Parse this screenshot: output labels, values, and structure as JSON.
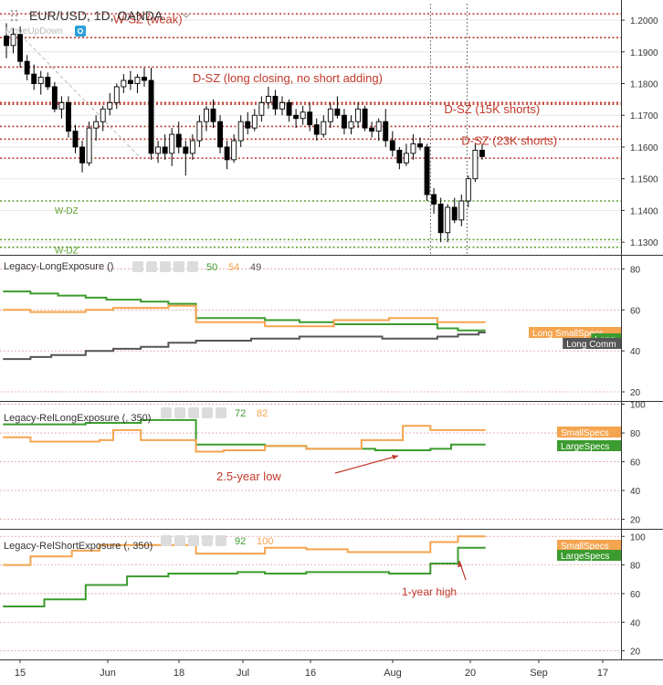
{
  "colors": {
    "candle_up": "#ffffff",
    "candle_down": "#000000",
    "supply_zone": "#c0392b",
    "demand_zone": "#5aa02c",
    "large_specs": "#3c9b2f",
    "small_specs": "#f5a44f",
    "commercials": "#555555",
    "annotation": "#c0392b",
    "axis_text": "#333333",
    "grid": "#e6e6e6"
  },
  "chart_data": [
    {
      "type": "candlestick",
      "title": "EUR/USD, 1D, OANDA",
      "sub_label": "MoveUpDown",
      "x_ticks": [
        "15",
        "Jun",
        "18",
        "Jul",
        "16",
        "Aug",
        "20",
        "Sep",
        "17"
      ],
      "y_ticks": [
        "1.2000",
        "1.1900",
        "1.1800",
        "1.1700",
        "1.1600",
        "1.1500",
        "1.1400",
        "1.1300"
      ],
      "ylim": [
        1.1263,
        1.2052
      ],
      "candles": [
        [
          1.195,
          1.199,
          1.188,
          1.192
        ],
        [
          1.192,
          1.1975,
          1.1895,
          1.1955
        ],
        [
          1.1955,
          1.198,
          1.185,
          1.187
        ],
        [
          1.187,
          1.189,
          1.181,
          1.183
        ],
        [
          1.183,
          1.186,
          1.178,
          1.18
        ],
        [
          1.18,
          1.184,
          1.1765,
          1.182
        ],
        [
          1.182,
          1.1835,
          1.178,
          1.179
        ],
        [
          1.179,
          1.1805,
          1.171,
          1.172
        ],
        [
          1.172,
          1.176,
          1.169,
          1.174
        ],
        [
          1.174,
          1.176,
          1.163,
          1.165
        ],
        [
          1.165,
          1.167,
          1.158,
          1.16
        ],
        [
          1.16,
          1.162,
          1.152,
          1.155
        ],
        [
          1.155,
          1.168,
          1.154,
          1.166
        ],
        [
          1.166,
          1.17,
          1.162,
          1.168
        ],
        [
          1.168,
          1.173,
          1.165,
          1.172
        ],
        [
          1.172,
          1.177,
          1.17,
          1.174
        ],
        [
          1.174,
          1.18,
          1.172,
          1.179
        ],
        [
          1.179,
          1.183,
          1.177,
          1.181
        ],
        [
          1.181,
          1.184,
          1.178,
          1.18
        ],
        [
          1.18,
          1.183,
          1.177,
          1.182
        ],
        [
          1.182,
          1.185,
          1.179,
          1.181
        ],
        [
          1.181,
          1.185,
          1.156,
          1.158
        ],
        [
          1.158,
          1.162,
          1.155,
          1.16
        ],
        [
          1.16,
          1.164,
          1.156,
          1.158
        ],
        [
          1.158,
          1.166,
          1.154,
          1.164
        ],
        [
          1.164,
          1.168,
          1.158,
          1.16
        ],
        [
          1.16,
          1.162,
          1.151,
          1.158
        ],
        [
          1.158,
          1.164,
          1.156,
          1.162
        ],
        [
          1.162,
          1.17,
          1.16,
          1.168
        ],
        [
          1.168,
          1.173,
          1.165,
          1.172
        ],
        [
          1.172,
          1.175,
          1.166,
          1.168
        ],
        [
          1.168,
          1.17,
          1.158,
          1.16
        ],
        [
          1.16,
          1.162,
          1.153,
          1.156
        ],
        [
          1.156,
          1.164,
          1.155,
          1.162
        ],
        [
          1.162,
          1.17,
          1.16,
          1.168
        ],
        [
          1.168,
          1.171,
          1.164,
          1.166
        ],
        [
          1.166,
          1.172,
          1.165,
          1.17
        ],
        [
          1.17,
          1.176,
          1.168,
          1.174
        ],
        [
          1.174,
          1.179,
          1.172,
          1.176
        ],
        [
          1.176,
          1.178,
          1.17,
          1.172
        ],
        [
          1.172,
          1.176,
          1.17,
          1.174
        ],
        [
          1.174,
          1.175,
          1.168,
          1.17
        ],
        [
          1.17,
          1.172,
          1.166,
          1.169
        ],
        [
          1.169,
          1.173,
          1.167,
          1.171
        ],
        [
          1.171,
          1.174,
          1.165,
          1.167
        ],
        [
          1.167,
          1.169,
          1.162,
          1.164
        ],
        [
          1.164,
          1.17,
          1.163,
          1.168
        ],
        [
          1.168,
          1.174,
          1.166,
          1.172
        ],
        [
          1.172,
          1.176,
          1.169,
          1.17
        ],
        [
          1.17,
          1.172,
          1.164,
          1.166
        ],
        [
          1.166,
          1.17,
          1.164,
          1.168
        ],
        [
          1.168,
          1.174,
          1.166,
          1.172
        ],
        [
          1.172,
          1.173,
          1.165,
          1.166
        ],
        [
          1.166,
          1.168,
          1.163,
          1.165
        ],
        [
          1.165,
          1.169,
          1.162,
          1.168
        ],
        [
          1.168,
          1.172,
          1.16,
          1.162
        ],
        [
          1.162,
          1.165,
          1.157,
          1.159
        ],
        [
          1.159,
          1.16,
          1.153,
          1.155
        ],
        [
          1.155,
          1.161,
          1.154,
          1.158
        ],
        [
          1.158,
          1.164,
          1.156,
          1.161
        ],
        [
          1.161,
          1.163,
          1.159,
          1.16
        ],
        [
          1.16,
          1.161,
          1.143,
          1.145
        ],
        [
          1.145,
          1.147,
          1.139,
          1.142
        ],
        [
          1.142,
          1.144,
          1.13,
          1.133
        ],
        [
          1.133,
          1.142,
          1.13,
          1.141
        ],
        [
          1.141,
          1.144,
          1.136,
          1.137
        ],
        [
          1.137,
          1.145,
          1.135,
          1.143
        ],
        [
          1.143,
          1.151,
          1.141,
          1.15
        ],
        [
          1.15,
          1.161,
          1.149,
          1.159
        ],
        [
          1.159,
          1.161,
          1.156,
          1.157
        ]
      ],
      "zones": [
        {
          "kind": "supply",
          "value": 1.202,
          "label": ""
        },
        {
          "kind": "supply",
          "value": 1.1945,
          "label": ""
        },
        {
          "kind": "supply",
          "value": 1.1852,
          "label": ""
        },
        {
          "kind": "supply",
          "value": 1.174,
          "label": ""
        },
        {
          "kind": "supply",
          "value": 1.1735,
          "label": ""
        },
        {
          "kind": "supply",
          "value": 1.1665,
          "label": ""
        },
        {
          "kind": "supply",
          "value": 1.1625,
          "label": ""
        },
        {
          "kind": "supply",
          "value": 1.1565,
          "label": ""
        },
        {
          "kind": "demand",
          "value": 1.143,
          "label": ""
        },
        {
          "kind": "demand",
          "value": 1.1308,
          "label": ""
        },
        {
          "kind": "demand",
          "value": 1.1284,
          "label": ""
        }
      ],
      "vertical_markers": [
        61.5,
        66.8
      ],
      "annotations": [
        {
          "text": "W-SZ (weak)",
          "date_index": 15.5,
          "value": 1.199,
          "color": "supply"
        },
        {
          "text": "D-SZ (long closing, no short adding)",
          "date_index": 27.0,
          "value": 1.1805,
          "color": "supply"
        },
        {
          "text": "D-SZ (15K shorts)",
          "date_index": 63.5,
          "value": 1.1707,
          "color": "supply"
        },
        {
          "text": "D-SZ (23K shorts)",
          "date_index": 66.0,
          "value": 1.1607,
          "color": "supply"
        },
        {
          "text": "W-DZ",
          "date_index": 7.0,
          "value": 1.139,
          "color": "demand"
        },
        {
          "text": "W-DZ",
          "date_index": 7.0,
          "value": 1.1265,
          "color": "demand"
        }
      ]
    },
    {
      "type": "line",
      "title": "Legacy-LongExposure ()",
      "value_labels": [
        "50",
        "54",
        "49"
      ],
      "y_ticks": [
        "80",
        "60",
        "40",
        "20"
      ],
      "ylim": [
        16,
        86
      ],
      "series": [
        {
          "name": "Long Commercials",
          "legend_text": "Long Comm",
          "color": "commercials",
          "values": [
            36,
            36,
            36,
            36,
            37,
            37,
            37,
            38,
            38,
            38,
            38,
            38,
            40,
            40,
            40,
            40,
            41,
            41,
            41,
            41,
            42,
            42,
            42,
            42,
            44,
            44,
            44,
            44,
            45,
            45,
            45,
            45,
            45,
            45,
            45,
            45,
            46,
            46,
            46,
            46,
            46,
            46,
            46,
            47,
            47,
            47,
            47,
            47,
            47,
            47,
            47,
            47,
            47,
            47,
            47,
            46,
            46,
            46,
            46,
            46,
            46,
            46,
            46,
            47,
            47,
            47,
            48,
            48,
            48,
            49
          ]
        },
        {
          "name": "Long LargeSpecs",
          "legend_text": "Long",
          "color": "large_specs",
          "values": [
            69,
            69,
            69,
            69,
            68,
            68,
            68,
            68,
            67,
            67,
            67,
            67,
            66,
            66,
            66,
            65,
            65,
            65,
            65,
            65,
            64,
            64,
            64,
            64,
            63,
            63,
            63,
            63,
            56,
            56,
            56,
            56,
            56,
            56,
            56,
            56,
            56,
            56,
            55,
            55,
            55,
            55,
            55,
            54,
            54,
            54,
            54,
            54,
            53,
            53,
            53,
            53,
            53,
            53,
            53,
            53,
            53,
            53,
            53,
            53,
            53,
            53,
            53,
            51,
            51,
            51,
            50,
            50,
            50,
            50
          ]
        },
        {
          "name": "Long SmallSpecs",
          "legend_text": "Long SmallSpecs",
          "color": "small_specs",
          "values": [
            60,
            60,
            60,
            60,
            59,
            59,
            59,
            59,
            59,
            59,
            59,
            59,
            60,
            60,
            60,
            60,
            61,
            61,
            61,
            61,
            61,
            61,
            61,
            61,
            62,
            62,
            62,
            62,
            54,
            54,
            54,
            54,
            54,
            54,
            54,
            54,
            54,
            54,
            52,
            52,
            52,
            52,
            52,
            52,
            52,
            52,
            52,
            52,
            55,
            55,
            55,
            55,
            55,
            55,
            55,
            55,
            56,
            56,
            56,
            56,
            56,
            56,
            56,
            54,
            54,
            54,
            54,
            54,
            54,
            54
          ]
        }
      ]
    },
    {
      "type": "line",
      "title": "Legacy-RelLongExposure (, 350)",
      "value_labels": [
        "72",
        "82"
      ],
      "y_ticks": [
        "100",
        "80",
        "60",
        "40",
        "20"
      ],
      "ylim": [
        14,
        101
      ],
      "series": [
        {
          "name": "LargeSpecs",
          "legend_text": "LargeSpecs",
          "color": "large_specs",
          "values": [
            86,
            86,
            86,
            86,
            86,
            86,
            86,
            86,
            86,
            86,
            86,
            86,
            87,
            87,
            87,
            87,
            87,
            87,
            87,
            87,
            89,
            89,
            89,
            89,
            89,
            89,
            89,
            89,
            72,
            72,
            72,
            72,
            72,
            72,
            72,
            72,
            72,
            72,
            71,
            71,
            71,
            71,
            71,
            71,
            69,
            69,
            69,
            69,
            69,
            69,
            69,
            69,
            69,
            69,
            68,
            68,
            68,
            68,
            68,
            68,
            68,
            68,
            69,
            69,
            69,
            72,
            72,
            72,
            72,
            72
          ]
        },
        {
          "name": "SmallSpecs",
          "legend_text": "SmallSpecs",
          "color": "small_specs",
          "values": [
            77,
            77,
            77,
            77,
            74,
            74,
            74,
            74,
            74,
            74,
            74,
            74,
            74,
            74,
            75,
            75,
            82,
            82,
            82,
            82,
            75,
            75,
            75,
            75,
            75,
            75,
            75,
            75,
            67,
            67,
            67,
            67,
            68,
            68,
            68,
            68,
            68,
            68,
            71,
            71,
            71,
            71,
            71,
            71,
            69,
            69,
            69,
            69,
            69,
            69,
            69,
            69,
            75,
            75,
            75,
            75,
            75,
            75,
            85,
            85,
            85,
            85,
            82,
            82,
            82,
            82,
            82,
            82,
            82,
            82
          ]
        }
      ]
    },
    {
      "type": "line",
      "title": "Legacy-RelShortExposure (, 350)",
      "value_labels": [
        "92",
        "100"
      ],
      "y_ticks": [
        "100",
        "80",
        "60",
        "40",
        "20"
      ],
      "ylim": [
        14,
        104
      ],
      "series": [
        {
          "name": "LargeSpecs",
          "legend_text": "LargeSpecs",
          "color": "large_specs",
          "values": [
            51,
            51,
            51,
            51,
            51,
            51,
            56,
            56,
            56,
            56,
            56,
            56,
            66,
            66,
            66,
            66,
            66,
            66,
            72,
            72,
            72,
            72,
            72,
            72,
            74,
            74,
            74,
            74,
            74,
            74,
            74,
            74,
            74,
            74,
            75,
            75,
            75,
            75,
            74,
            74,
            74,
            74,
            74,
            74,
            75,
            75,
            75,
            75,
            75,
            75,
            75,
            75,
            75,
            75,
            75,
            75,
            74,
            74,
            74,
            74,
            74,
            74,
            81,
            81,
            81,
            81,
            92,
            92,
            92,
            92
          ]
        },
        {
          "name": "SmallSpecs",
          "legend_text": "SmallSpecs",
          "color": "small_specs",
          "values": [
            80,
            80,
            80,
            80,
            86,
            86,
            86,
            86,
            86,
            86,
            90,
            90,
            90,
            90,
            94,
            94,
            94,
            94,
            94,
            94,
            94,
            94,
            94,
            94,
            94,
            94,
            94,
            94,
            88,
            88,
            88,
            88,
            88,
            88,
            88,
            88,
            88,
            88,
            92,
            92,
            92,
            92,
            92,
            92,
            91,
            91,
            91,
            91,
            91,
            91,
            89,
            89,
            89,
            89,
            89,
            89,
            89,
            89,
            89,
            89,
            89,
            89,
            96,
            96,
            96,
            96,
            100,
            100,
            100,
            100
          ]
        }
      ],
      "annotations": [
        {
          "text": "1-year high",
          "date_index": 65.0,
          "value": 60
        }
      ]
    }
  ],
  "panel2_annotation": {
    "text": "2.5-year low"
  }
}
